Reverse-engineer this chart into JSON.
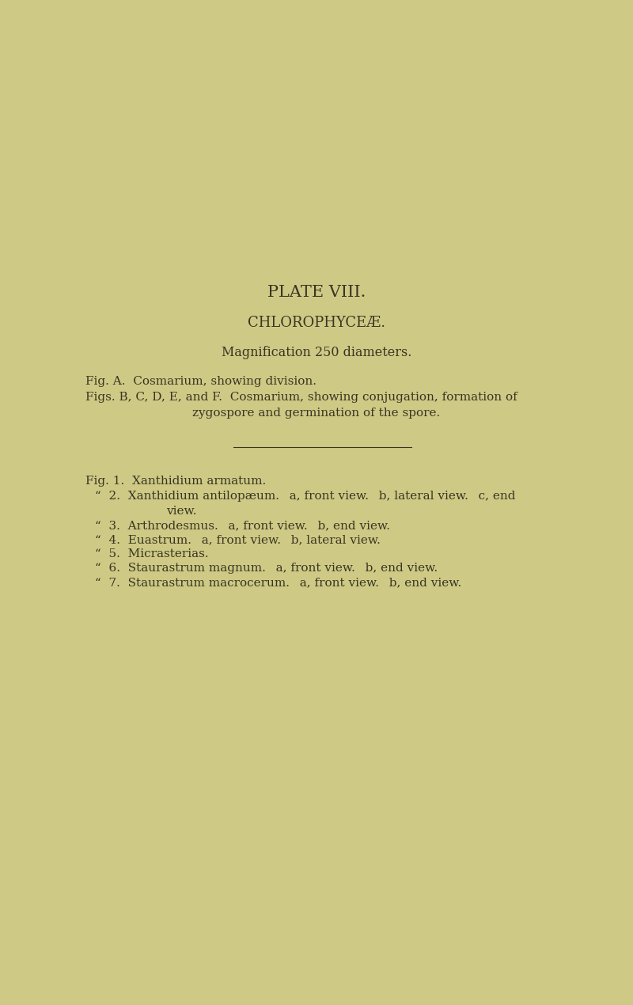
{
  "background_color": "#ceca86",
  "text_color": "#3a3520",
  "page_width": 8.0,
  "page_height": 12.7,
  "title": "PLATE VIII.",
  "subtitle": "CHLOROPHYCEÆ.",
  "magnification": "Magnification 250 diameters.",
  "fig_a": "Fig. A.  Cosmarium, showing division.",
  "fig_bcdef": "Figs. B, C, D, E, and F.  Cosmarium, showing conjugation, formation of",
  "fig_bcdef_cont": "zygospore and germination of the spore.",
  "fig1": "Fig. 1.  Xanthidium armatum.",
  "fig2a": "“  2.  Xanthidium antilopæum.   a, front view.   b, lateral view.   c, end",
  "fig2b": "view.",
  "fig3": "“  3.  Arthrodesmus.   a, front view.   b, end view.",
  "fig4": "“  4.  Euastrum.   a, front view.   b, lateral view.",
  "fig5": "“  5.  Micrasterias.",
  "fig6": "“  6.  Staurastrum magnum.   a, front view.   b, end view.",
  "fig7": "“  7.  Staurastrum macrocerum.   a, front view.   b, end view.",
  "title_fontsize": 15,
  "subtitle_fontsize": 13,
  "mag_fontsize": 11.5,
  "body_fontsize": 11,
  "fig_list_fontsize": 11
}
